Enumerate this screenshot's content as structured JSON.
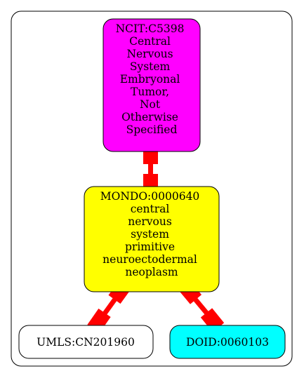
{
  "graph": {
    "nodes": {
      "ncit": {
        "lines": [
          "NCIT:C5398",
          "Central",
          "Nervous",
          "System",
          "Embryonal",
          "Tumor,",
          "Not",
          "Otherwise",
          "Specified"
        ],
        "fill": "#ff00ff"
      },
      "mondo": {
        "lines": [
          "MONDO:0000640",
          "central",
          "nervous",
          "system",
          "primitive",
          "neuroectodermal",
          "neoplasm"
        ],
        "fill": "#ffff00"
      },
      "umls": {
        "lines": [
          "UMLS:CN201960"
        ],
        "fill": "#ffffff"
      },
      "doid": {
        "lines": [
          "DOID:0060103"
        ],
        "fill": "#00ffff"
      }
    },
    "edges": [
      {
        "from": "ncit",
        "to": "mondo"
      },
      {
        "from": "mondo",
        "to": "umls"
      },
      {
        "from": "mondo",
        "to": "doid"
      }
    ],
    "edge_color": "#ff0000",
    "stroke_color": "#000000"
  }
}
